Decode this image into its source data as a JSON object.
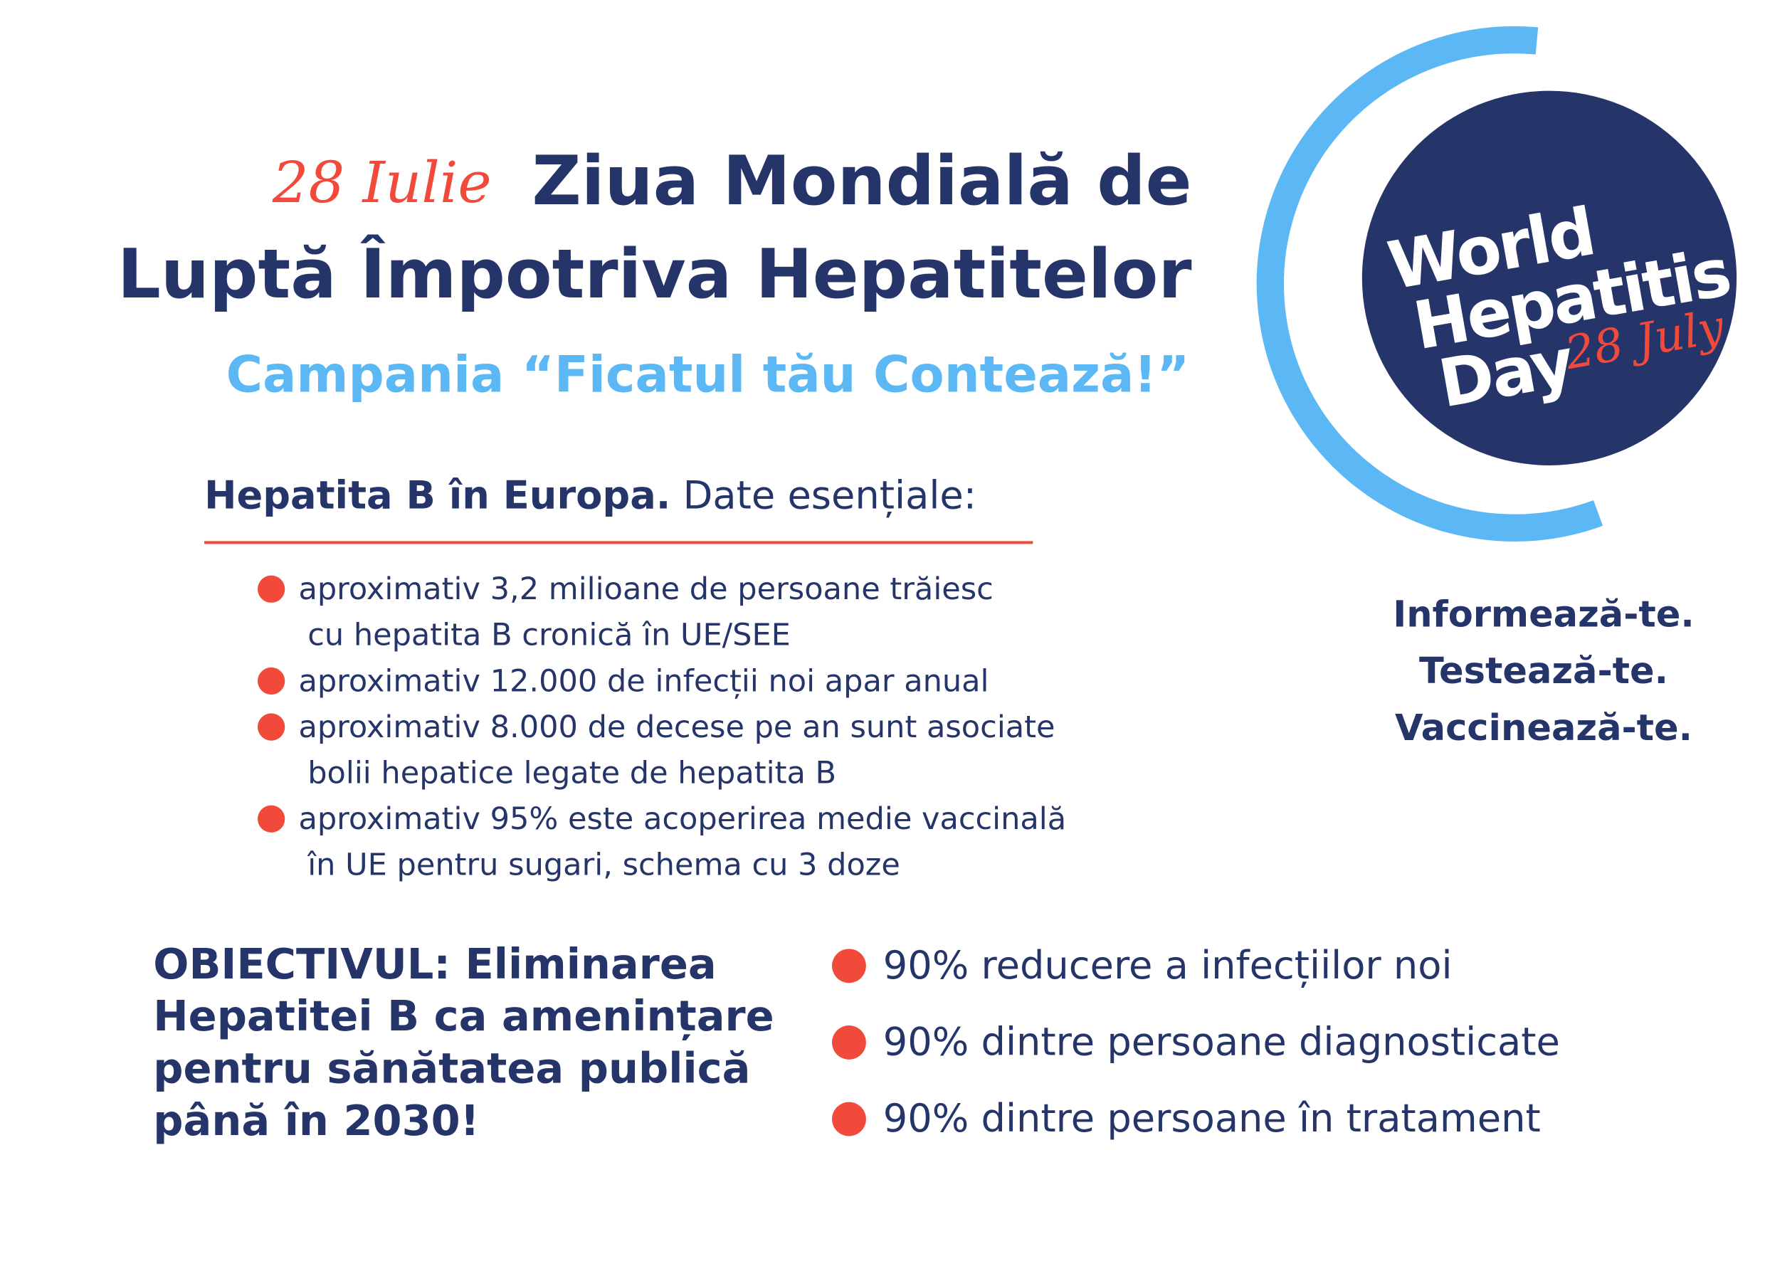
{
  "header": {
    "date": "28 Iulie",
    "title_line1": "Ziua Mondială de",
    "title_line2": "Luptă Împotriva Hepatitelor",
    "campaign": "Campania “Ficatul tău Contează!”"
  },
  "logo": {
    "lines": [
      "World",
      "Hepatitis",
      "Day"
    ],
    "date": "28 July"
  },
  "slogans": [
    "Informează-te.",
    "Testează-te.",
    "Vaccinează-te."
  ],
  "facts": {
    "heading_bold": "Hepatita B în Europa.",
    "heading_rest": "Date esențiale:",
    "items": [
      [
        "aproximativ 3,2 milioane de persoane trăiesc",
        "cu hepatita B cronică în UE/SEE"
      ],
      [
        "aproximativ 12.000 de infecții noi apar anual"
      ],
      [
        "aproximativ 8.000 de decese pe an sunt asociate",
        "bolii hepatice legate de hepatita B"
      ],
      [
        "aproximativ 95% este acoperirea medie vaccinală",
        "în UE pentru sugari, schema cu 3 doze"
      ]
    ]
  },
  "objective": {
    "lines": [
      "OBIECTIVUL: Eliminarea",
      "Hepatitei B ca amenințare",
      "pentru sănătatea publică",
      "până în 2030!"
    ]
  },
  "targets": [
    "90% reducere a infecțiilor noi",
    "90% dintre persoane diagnosticate",
    "90% dintre persoane în tratament"
  ]
}
